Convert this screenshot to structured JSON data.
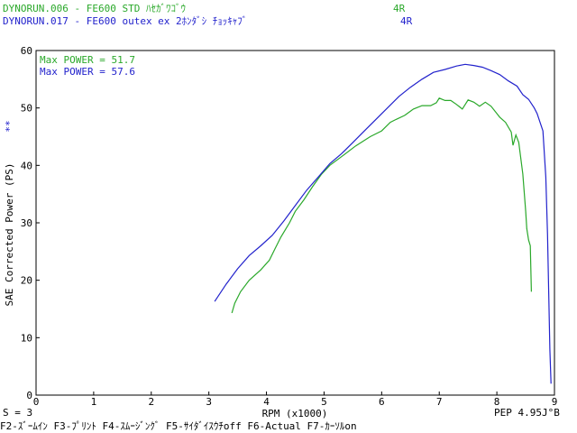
{
  "header": {
    "runs": [
      {
        "file": "DYNORUN.006",
        "label": "DYNORUN.006 - FE600 STD ﾊｾｶﾞﾜｺﾞｳ",
        "tag": "4R",
        "color": "#2aa82a"
      },
      {
        "file": "DYNORUN.017",
        "label": "DYNORUN.017 - FE600 outex ex 2ﾎﾝﾀﾞｼ ﾁｮｯｷｬﾌﾞ",
        "tag": "4R",
        "color": "#2222cc"
      }
    ]
  },
  "legend": {
    "max_power": [
      {
        "text": "Max POWER = 51.7",
        "color": "#2aa82a"
      },
      {
        "text": "Max POWER = 57.6",
        "color": "#2222cc"
      }
    ],
    "marker": "**"
  },
  "footer": {
    "smoothing": "S = 3",
    "pep": "PEP 4.95J°B",
    "function_keys": "F2-ｽﾞｰﾑｲﾝ F3-ﾌﾟﾘﾝﾄ F4-ｽﾑｰｼﾞﾝｸﾞ F5-ｻｲﾀﾞｲｽｳﾁoff F6-Actual  F7-ｶｰｿﾙon"
  },
  "chart_data": {
    "type": "line",
    "xlabel": "RPM (x1000)",
    "ylabel": "SAE Corrected Power (PS)",
    "xlim": [
      0,
      9
    ],
    "ylim": [
      0,
      60
    ],
    "x_ticks": [
      0,
      1,
      2,
      3,
      4,
      5,
      6,
      7,
      8,
      9
    ],
    "y_ticks": [
      0,
      10,
      20,
      30,
      40,
      50,
      60
    ],
    "grid": false,
    "series": [
      {
        "name": "DYNORUN.006",
        "color": "#2aa82a",
        "points": [
          [
            3.4,
            14.3
          ],
          [
            3.45,
            16.0
          ],
          [
            3.55,
            18.0
          ],
          [
            3.7,
            20.0
          ],
          [
            3.9,
            21.8
          ],
          [
            4.05,
            23.5
          ],
          [
            4.15,
            25.5
          ],
          [
            4.25,
            27.5
          ],
          [
            4.4,
            30.0
          ],
          [
            4.5,
            32.0
          ],
          [
            4.65,
            34.0
          ],
          [
            4.8,
            36.3
          ],
          [
            4.95,
            38.4
          ],
          [
            5.1,
            40.0
          ],
          [
            5.3,
            41.5
          ],
          [
            5.55,
            43.4
          ],
          [
            5.8,
            45.0
          ],
          [
            6.0,
            46.0
          ],
          [
            6.15,
            47.5
          ],
          [
            6.25,
            48.0
          ],
          [
            6.4,
            48.7
          ],
          [
            6.55,
            49.8
          ],
          [
            6.7,
            50.4
          ],
          [
            6.85,
            50.4
          ],
          [
            6.95,
            50.9
          ],
          [
            7.0,
            51.7
          ],
          [
            7.1,
            51.3
          ],
          [
            7.2,
            51.3
          ],
          [
            7.3,
            50.6
          ],
          [
            7.4,
            49.8
          ],
          [
            7.5,
            51.4
          ],
          [
            7.6,
            51.0
          ],
          [
            7.7,
            50.3
          ],
          [
            7.8,
            51.0
          ],
          [
            7.9,
            50.3
          ],
          [
            8.05,
            48.4
          ],
          [
            8.15,
            47.5
          ],
          [
            8.25,
            45.8
          ],
          [
            8.28,
            43.5
          ],
          [
            8.33,
            45.3
          ],
          [
            8.38,
            44.0
          ],
          [
            8.45,
            38.5
          ],
          [
            8.5,
            32.0
          ],
          [
            8.52,
            29.0
          ],
          [
            8.55,
            27.0
          ],
          [
            8.58,
            26.0
          ],
          [
            8.6,
            18.0
          ]
        ]
      },
      {
        "name": "DYNORUN.017",
        "color": "#2222cc",
        "points": [
          [
            3.1,
            16.3
          ],
          [
            3.3,
            19.3
          ],
          [
            3.5,
            22.0
          ],
          [
            3.7,
            24.3
          ],
          [
            3.9,
            26.0
          ],
          [
            4.1,
            27.8
          ],
          [
            4.3,
            30.3
          ],
          [
            4.5,
            33.0
          ],
          [
            4.7,
            35.7
          ],
          [
            4.9,
            38.0
          ],
          [
            5.1,
            40.3
          ],
          [
            5.3,
            42.0
          ],
          [
            5.5,
            44.0
          ],
          [
            5.7,
            46.0
          ],
          [
            5.9,
            48.0
          ],
          [
            6.1,
            50.0
          ],
          [
            6.3,
            52.0
          ],
          [
            6.5,
            53.6
          ],
          [
            6.7,
            55.0
          ],
          [
            6.9,
            56.2
          ],
          [
            7.1,
            56.7
          ],
          [
            7.3,
            57.3
          ],
          [
            7.45,
            57.6
          ],
          [
            7.6,
            57.4
          ],
          [
            7.75,
            57.1
          ],
          [
            7.9,
            56.5
          ],
          [
            8.05,
            55.8
          ],
          [
            8.2,
            54.7
          ],
          [
            8.35,
            53.8
          ],
          [
            8.45,
            52.3
          ],
          [
            8.55,
            51.5
          ],
          [
            8.65,
            50.0
          ],
          [
            8.7,
            49.0
          ],
          [
            8.75,
            47.5
          ],
          [
            8.8,
            46.0
          ],
          [
            8.85,
            38.0
          ],
          [
            8.88,
            28.0
          ],
          [
            8.9,
            18.0
          ],
          [
            8.92,
            8.0
          ],
          [
            8.94,
            2.0
          ]
        ]
      }
    ]
  }
}
